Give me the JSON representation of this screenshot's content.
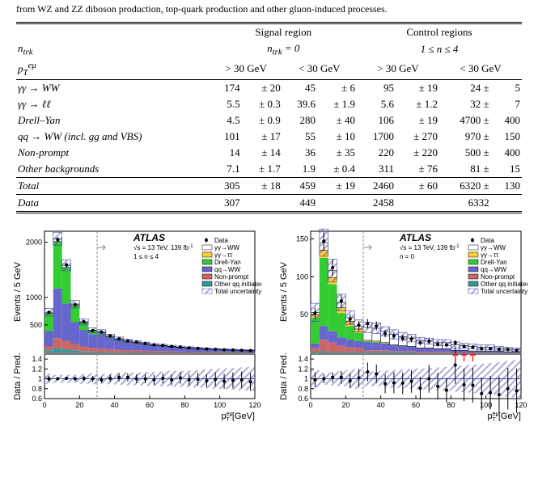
{
  "caption": "from WZ and ZZ diboson production, top-quark production and other gluon-induced processes.",
  "table": {
    "header": {
      "sr": "Signal region",
      "cr": "Control regions",
      "ntrk": "n",
      "ntrk_sub": "trk",
      "ntrk0": "= 0",
      "ntrk14": "1 ≤ n    ≤ 4",
      "pt": "p",
      "pt_sup": "eμ",
      "pt_sub": "T",
      "gt30": "> 30 GeV",
      "lt30": "< 30 GeV"
    },
    "rows": [
      {
        "label": "γγ → WW",
        "v": [
          "174",
          "± 20",
          "45",
          "± 6",
          "95",
          "± 19",
          "24 ±",
          "5"
        ]
      },
      {
        "label": "γγ → ℓℓ",
        "v": [
          "5.5",
          "± 0.3",
          "39.6",
          "± 1.9",
          "5.6",
          "± 1.2",
          "32 ±",
          "7"
        ]
      },
      {
        "label": "Drell–Yan",
        "v": [
          "4.5",
          "± 0.9",
          "280",
          "± 40",
          "106",
          "± 19",
          "4700 ±",
          "400"
        ]
      },
      {
        "label": "qq → WW (incl. gg and VBS)",
        "v": [
          "101",
          "± 17",
          "55",
          "± 10",
          "1700",
          "± 270",
          "970 ±",
          "150"
        ]
      },
      {
        "label": "Non-prompt",
        "v": [
          "14",
          "± 14",
          "36",
          "± 35",
          "220",
          "± 220",
          "500 ±",
          "400"
        ]
      },
      {
        "label": "Other backgrounds",
        "v": [
          "7.1",
          "± 1.7",
          "1.9",
          "± 0.4",
          "311",
          "± 76",
          "81 ±",
          "15"
        ]
      }
    ],
    "total": {
      "label": "Total",
      "v": [
        "305",
        "± 18",
        "459",
        "± 19",
        "2460",
        "± 60",
        "6320 ±",
        "130"
      ]
    },
    "data": {
      "label": "Data",
      "v": [
        "307",
        "",
        "449",
        "",
        "2458",
        "",
        "6332",
        ""
      ]
    }
  },
  "charts": {
    "left": {
      "sel": "1 ≤ n    ≤ 4",
      "sel_sub": "trk",
      "ylim_top": [
        0,
        2200
      ],
      "yticks_top": [
        500,
        1000,
        2000
      ],
      "xlim": [
        0,
        120
      ],
      "xticks": [
        0,
        20,
        40,
        60,
        80,
        100,
        120
      ],
      "ylim_ratio": [
        0.6,
        1.5
      ],
      "yticks_ratio": [
        0.6,
        0.8,
        1,
        1.2,
        1.4
      ],
      "bins": [
        {
          "x": 2.5,
          "data": 730,
          "stack": [
            20,
            1,
            320,
            280,
            70,
            40
          ],
          "err": 70
        },
        {
          "x": 7.5,
          "data": 2050,
          "stack": [
            50,
            2,
            850,
            900,
            180,
            80
          ],
          "err": 120
        },
        {
          "x": 12.5,
          "data": 1590,
          "stack": [
            40,
            2,
            650,
            680,
            150,
            60
          ],
          "err": 100
        },
        {
          "x": 17.5,
          "data": 870,
          "stack": [
            25,
            1,
            300,
            400,
            110,
            40
          ],
          "err": 70
        },
        {
          "x": 22.5,
          "data": 560,
          "stack": [
            15,
            1,
            130,
            300,
            85,
            25
          ],
          "err": 55
        },
        {
          "x": 27.5,
          "data": 400,
          "stack": [
            10,
            1,
            60,
            250,
            65,
            18
          ],
          "err": 45
        },
        {
          "x": 32.5,
          "data": 370,
          "stack": [
            18,
            1,
            30,
            250,
            60,
            15
          ],
          "err": 40
        },
        {
          "x": 37.5,
          "data": 300,
          "stack": [
            15,
            1,
            20,
            200,
            50,
            12
          ],
          "err": 35
        },
        {
          "x": 42.5,
          "data": 250,
          "stack": [
            15,
            1,
            15,
            170,
            40,
            10
          ],
          "err": 30
        },
        {
          "x": 47.5,
          "data": 210,
          "stack": [
            13,
            1,
            10,
            145,
            35,
            8
          ],
          "err": 28
        },
        {
          "x": 52.5,
          "data": 190,
          "stack": [
            12,
            1,
            8,
            130,
            32,
            7
          ],
          "err": 25
        },
        {
          "x": 57.5,
          "data": 165,
          "stack": [
            11,
            0,
            6,
            115,
            28,
            6
          ],
          "err": 23
        },
        {
          "x": 62.5,
          "data": 140,
          "stack": [
            10,
            0,
            5,
            100,
            22,
            5
          ],
          "err": 21
        },
        {
          "x": 67.5,
          "data": 130,
          "stack": [
            10,
            0,
            4,
            90,
            20,
            5
          ],
          "err": 20
        },
        {
          "x": 72.5,
          "data": 110,
          "stack": [
            9,
            0,
            3,
            80,
            16,
            4
          ],
          "err": 19
        },
        {
          "x": 77.5,
          "data": 100,
          "stack": [
            8,
            0,
            3,
            70,
            14,
            4
          ],
          "err": 18
        },
        {
          "x": 82.5,
          "data": 85,
          "stack": [
            8,
            0,
            2,
            62,
            12,
            3
          ],
          "err": 16
        },
        {
          "x": 87.5,
          "data": 75,
          "stack": [
            7,
            0,
            2,
            55,
            10,
            3
          ],
          "err": 15
        },
        {
          "x": 92.5,
          "data": 65,
          "stack": [
            7,
            0,
            2,
            48,
            9,
            2
          ],
          "err": 15
        },
        {
          "x": 97.5,
          "data": 58,
          "stack": [
            6,
            0,
            1,
            42,
            8,
            2
          ],
          "err": 14
        },
        {
          "x": 102.5,
          "data": 50,
          "stack": [
            6,
            0,
            1,
            37,
            7,
            2
          ],
          "err": 13
        },
        {
          "x": 107.5,
          "data": 45,
          "stack": [
            5,
            0,
            1,
            33,
            6,
            2
          ],
          "err": 13
        },
        {
          "x": 112.5,
          "data": 40,
          "stack": [
            5,
            0,
            1,
            29,
            5,
            1
          ],
          "err": 12
        },
        {
          "x": 117.5,
          "data": 35,
          "stack": [
            5,
            0,
            1,
            26,
            5,
            1
          ],
          "err": 12
        }
      ],
      "ratio": [
        {
          "x": 2.5,
          "r": 1.0,
          "e": 0.06,
          "b": 0.1
        },
        {
          "x": 7.5,
          "r": 1.0,
          "e": 0.03,
          "b": 0.08
        },
        {
          "x": 12.5,
          "r": 1.01,
          "e": 0.03,
          "b": 0.08
        },
        {
          "x": 17.5,
          "r": 1.0,
          "e": 0.04,
          "b": 0.08
        },
        {
          "x": 22.5,
          "r": 1.01,
          "e": 0.05,
          "b": 0.1
        },
        {
          "x": 27.5,
          "r": 1.0,
          "e": 0.06,
          "b": 0.11
        },
        {
          "x": 32.5,
          "r": 0.98,
          "e": 0.06,
          "b": 0.1
        },
        {
          "x": 37.5,
          "r": 1.01,
          "e": 0.07,
          "b": 0.11
        },
        {
          "x": 42.5,
          "r": 1.03,
          "e": 0.08,
          "b": 0.12
        },
        {
          "x": 47.5,
          "r": 1.03,
          "e": 0.08,
          "b": 0.13
        },
        {
          "x": 52.5,
          "r": 1.0,
          "e": 0.09,
          "b": 0.13
        },
        {
          "x": 57.5,
          "r": 1.0,
          "e": 0.09,
          "b": 0.14
        },
        {
          "x": 62.5,
          "r": 0.98,
          "e": 0.1,
          "b": 0.14
        },
        {
          "x": 67.5,
          "r": 1.01,
          "e": 0.1,
          "b": 0.15
        },
        {
          "x": 72.5,
          "r": 0.98,
          "e": 0.11,
          "b": 0.16
        },
        {
          "x": 77.5,
          "r": 1.02,
          "e": 0.12,
          "b": 0.16
        },
        {
          "x": 82.5,
          "r": 0.98,
          "e": 0.12,
          "b": 0.17
        },
        {
          "x": 87.5,
          "r": 0.99,
          "e": 0.13,
          "b": 0.18
        },
        {
          "x": 92.5,
          "r": 0.96,
          "e": 0.13,
          "b": 0.19
        },
        {
          "x": 97.5,
          "r": 0.99,
          "e": 0.14,
          "b": 0.2
        },
        {
          "x": 102.5,
          "r": 0.95,
          "e": 0.15,
          "b": 0.21
        },
        {
          "x": 107.5,
          "r": 0.97,
          "e": 0.16,
          "b": 0.22
        },
        {
          "x": 112.5,
          "r": 0.98,
          "e": 0.17,
          "b": 0.23
        },
        {
          "x": 117.5,
          "r": 0.94,
          "e": 0.18,
          "b": 0.24
        }
      ]
    },
    "right": {
      "sel": "n    = 0",
      "sel_sub": "trk",
      "ylim_top": [
        0,
        160
      ],
      "yticks_top": [
        50,
        100,
        150
      ],
      "xlim": [
        0,
        120
      ],
      "xticks": [
        0,
        20,
        40,
        60,
        80,
        100,
        120
      ],
      "ylim_ratio": [
        0.6,
        1.5
      ],
      "yticks_ratio": [
        0.6,
        0.8,
        1,
        1.2,
        1.4
      ],
      "bins": [
        {
          "x": 2.5,
          "data": 52,
          "stack": [
            3,
            4,
            34,
            6,
            5,
            1
          ],
          "err": 12
        },
        {
          "x": 7.5,
          "data": 147,
          "stack": [
            10,
            10,
            90,
            18,
            15,
            2
          ],
          "err": 18
        },
        {
          "x": 12.5,
          "data": 112,
          "stack": [
            9,
            9,
            62,
            15,
            12,
            1
          ],
          "err": 15
        },
        {
          "x": 17.5,
          "data": 68,
          "stack": [
            7,
            7,
            32,
            11,
            8,
            1
          ],
          "err": 11
        },
        {
          "x": 22.5,
          "data": 44,
          "stack": [
            5,
            6,
            18,
            10,
            6,
            1
          ],
          "err": 9
        },
        {
          "x": 27.5,
          "data": 36,
          "stack": [
            4,
            5,
            11,
            9,
            5,
            1
          ],
          "err": 8
        },
        {
          "x": 32.5,
          "data": 38,
          "stack": [
            17,
            1,
            1,
            11,
            2,
            1
          ],
          "err": 7
        },
        {
          "x": 37.5,
          "data": 35,
          "stack": [
            17,
            1,
            1,
            10,
            2,
            1
          ],
          "err": 7
        },
        {
          "x": 42.5,
          "data": 25,
          "stack": [
            15,
            1,
            0,
            9,
            2,
            1
          ],
          "err": 6
        },
        {
          "x": 47.5,
          "data": 22,
          "stack": [
            14,
            0,
            0,
            8,
            1,
            1
          ],
          "err": 6
        },
        {
          "x": 52.5,
          "data": 19,
          "stack": [
            12,
            0,
            0,
            7,
            1,
            1
          ],
          "err": 5
        },
        {
          "x": 57.5,
          "data": 18,
          "stack": [
            11,
            0,
            0,
            6,
            1,
            1
          ],
          "err": 5
        },
        {
          "x": 62.5,
          "data": 13,
          "stack": [
            10,
            0,
            0,
            5,
            1,
            0
          ],
          "err": 4
        },
        {
          "x": 67.5,
          "data": 15,
          "stack": [
            9,
            0,
            0,
            5,
            1,
            0
          ],
          "err": 4
        },
        {
          "x": 72.5,
          "data": 11,
          "stack": [
            8,
            0,
            0,
            4,
            1,
            0
          ],
          "err": 4
        },
        {
          "x": 77.5,
          "data": 10,
          "stack": [
            8,
            0,
            0,
            4,
            1,
            0
          ],
          "err": 4
        },
        {
          "x": 82.5,
          "data": 13,
          "stack": [
            7,
            0,
            0,
            3,
            0,
            0
          ],
          "err": 4
        },
        {
          "x": 87.5,
          "data": 8,
          "stack": [
            6,
            0,
            0,
            3,
            0,
            0
          ],
          "err": 3
        },
        {
          "x": 92.5,
          "data": 7,
          "stack": [
            6,
            0,
            0,
            2,
            0,
            0
          ],
          "err": 3
        },
        {
          "x": 97.5,
          "data": 5,
          "stack": [
            5,
            0,
            0,
            2,
            0,
            0
          ],
          "err": 3
        },
        {
          "x": 102.5,
          "data": 5,
          "stack": [
            5,
            0,
            0,
            2,
            0,
            0
          ],
          "err": 3
        },
        {
          "x": 107.5,
          "data": 4,
          "stack": [
            4,
            0,
            0,
            2,
            0,
            0
          ],
          "err": 2
        },
        {
          "x": 112.5,
          "data": 4,
          "stack": [
            4,
            0,
            0,
            1,
            0,
            0
          ],
          "err": 2
        },
        {
          "x": 117.5,
          "data": 3,
          "stack": [
            3,
            0,
            0,
            1,
            0,
            0
          ],
          "err": 2
        }
      ],
      "ratio": [
        {
          "x": 2.5,
          "r": 0.98,
          "e": 0.15,
          "b": 0.18
        },
        {
          "x": 7.5,
          "r": 1.0,
          "e": 0.09,
          "b": 0.12
        },
        {
          "x": 12.5,
          "r": 1.03,
          "e": 0.1,
          "b": 0.13
        },
        {
          "x": 17.5,
          "r": 1.03,
          "e": 0.13,
          "b": 0.15
        },
        {
          "x": 22.5,
          "r": 0.96,
          "e": 0.15,
          "b": 0.18
        },
        {
          "x": 27.5,
          "r": 1.02,
          "e": 0.18,
          "b": 0.2
        },
        {
          "x": 32.5,
          "r": 1.14,
          "e": 0.19,
          "b": 0.15
        },
        {
          "x": 37.5,
          "r": 1.1,
          "e": 0.19,
          "b": 0.15
        },
        {
          "x": 42.5,
          "r": 0.9,
          "e": 0.19,
          "b": 0.17
        },
        {
          "x": 47.5,
          "r": 0.92,
          "e": 0.21,
          "b": 0.18
        },
        {
          "x": 52.5,
          "r": 0.91,
          "e": 0.22,
          "b": 0.19
        },
        {
          "x": 57.5,
          "r": 0.95,
          "e": 0.23,
          "b": 0.2
        },
        {
          "x": 62.5,
          "r": 0.81,
          "e": 0.23,
          "b": 0.21
        },
        {
          "x": 67.5,
          "r": 1.0,
          "e": 0.28,
          "b": 0.22
        },
        {
          "x": 72.5,
          "r": 0.85,
          "e": 0.27,
          "b": 0.23
        },
        {
          "x": 77.5,
          "r": 0.77,
          "e": 0.25,
          "b": 0.24
        },
        {
          "x": 82.5,
          "r": 1.28,
          "e": 0.38,
          "b": 0.26
        },
        {
          "x": 87.5,
          "r": 0.88,
          "e": 0.33,
          "b": 0.27
        },
        {
          "x": 92.5,
          "r": 0.87,
          "e": 0.35,
          "b": 0.29
        },
        {
          "x": 97.5,
          "r": 0.7,
          "e": 0.33,
          "b": 0.3
        },
        {
          "x": 102.5,
          "r": 0.72,
          "e": 0.34,
          "b": 0.32
        },
        {
          "x": 107.5,
          "r": 0.68,
          "e": 0.36,
          "b": 0.34
        },
        {
          "x": 112.5,
          "r": 0.8,
          "e": 0.42,
          "b": 0.36
        },
        {
          "x": 117.5,
          "r": 0.76,
          "e": 0.45,
          "b": 0.38
        }
      ],
      "arrows": [
        82.5,
        87.5,
        92.5
      ]
    },
    "colors": {
      "gg_ww": "#ffffff",
      "gg_ww_border": "#000000",
      "gg_tt": "#ffcc33",
      "drell_yan": "#33cc33",
      "qq_ww": "#6666cc",
      "non_prompt": "#cc6666",
      "other": "#339999",
      "unc_fill": "#4444aa",
      "data": "#000000",
      "arrow": "#ff0000"
    },
    "legend": {
      "info1": "√s = 13 TeV, 139 fb",
      "info1_sup": "-1",
      "items": [
        {
          "label": "Data",
          "type": "marker"
        },
        {
          "label": "γγ→WW",
          "type": "box",
          "fill": "#ffffff",
          "border": "#000000"
        },
        {
          "label": "γγ→ττ",
          "type": "box",
          "fill": "#ffcc33"
        },
        {
          "label": "Drell-Yan",
          "type": "box",
          "fill": "#33cc33"
        },
        {
          "label": "qq→WW",
          "type": "box",
          "fill": "#6666cc"
        },
        {
          "label": "Non-prompt",
          "type": "box",
          "fill": "#cc6666"
        },
        {
          "label": "Other qq initiated",
          "type": "box",
          "fill": "#339999"
        },
        {
          "label": "Total uncertainty",
          "type": "hatch"
        }
      ]
    },
    "ylabel_top": "Events / 5 GeV",
    "ylabel_ratio": "Data / Pred.",
    "xlabel": "p",
    "xlabel_sup": "eμ",
    "xlabel_sub": "T",
    "xlabel_unit": " [GeV]",
    "atlas": "ATLAS"
  }
}
